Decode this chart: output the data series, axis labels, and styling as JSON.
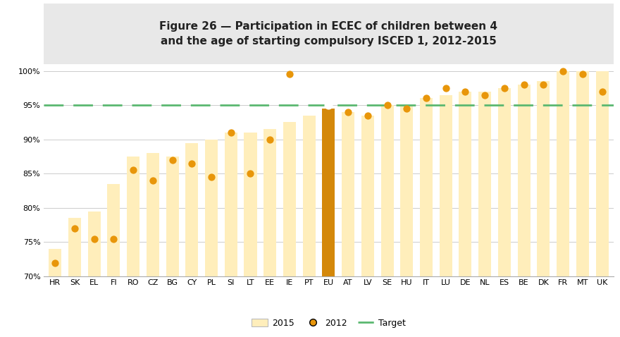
{
  "title": "Figure 26 — Participation in ECEC of children between 4\nand the age of starting compulsory ISCED 1, 2012-2015",
  "categories": [
    "HR",
    "SK",
    "EL",
    "FI",
    "RO",
    "CZ",
    "BG",
    "CY",
    "PL",
    "SI",
    "LT",
    "EE",
    "IE",
    "PT",
    "EU",
    "AT",
    "LV",
    "SE",
    "HU",
    "IT",
    "LU",
    "DE",
    "NL",
    "ES",
    "BE",
    "DK",
    "FR",
    "MT",
    "UK"
  ],
  "values_2015": [
    74.0,
    78.5,
    79.5,
    83.5,
    87.5,
    88.0,
    87.5,
    89.5,
    90.0,
    91.0,
    91.0,
    91.5,
    92.5,
    93.5,
    94.5,
    94.0,
    93.5,
    95.0,
    95.0,
    96.0,
    96.5,
    97.0,
    97.0,
    97.5,
    98.0,
    98.5,
    100.0,
    100.0,
    100.0
  ],
  "values_2012": [
    72.0,
    77.0,
    75.5,
    75.5,
    85.5,
    84.0,
    87.0,
    86.5,
    84.5,
    91.0,
    85.0,
    90.0,
    99.5,
    null,
    95.0,
    94.0,
    93.5,
    95.0,
    94.5,
    96.0,
    97.5,
    97.0,
    96.5,
    97.5,
    98.0,
    98.0,
    100.0,
    99.5,
    97.0
  ],
  "eu_index": 14,
  "bar_color_normal": "#FFEEBB",
  "bar_color_eu": "#D4880A",
  "dot_color_2012": "#E8960A",
  "target_color": "#5BB870",
  "target_value": 95.0,
  "ylim_min": 70,
  "ylim_max": 101,
  "yticks": [
    70,
    75,
    80,
    85,
    90,
    95,
    100
  ],
  "ytick_labels": [
    "70%",
    "75%",
    "80%",
    "85%",
    "90%",
    "95%",
    "100%"
  ],
  "legend_2015": "2015",
  "legend_2012": "2012",
  "legend_target": "Target",
  "title_bg_color": "#e8e8e8",
  "plot_bg_color": "#ffffff",
  "fig_bg_color": "#ffffff",
  "bar_width": 0.65,
  "title_fontsize": 11,
  "tick_fontsize": 8,
  "legend_fontsize": 9
}
